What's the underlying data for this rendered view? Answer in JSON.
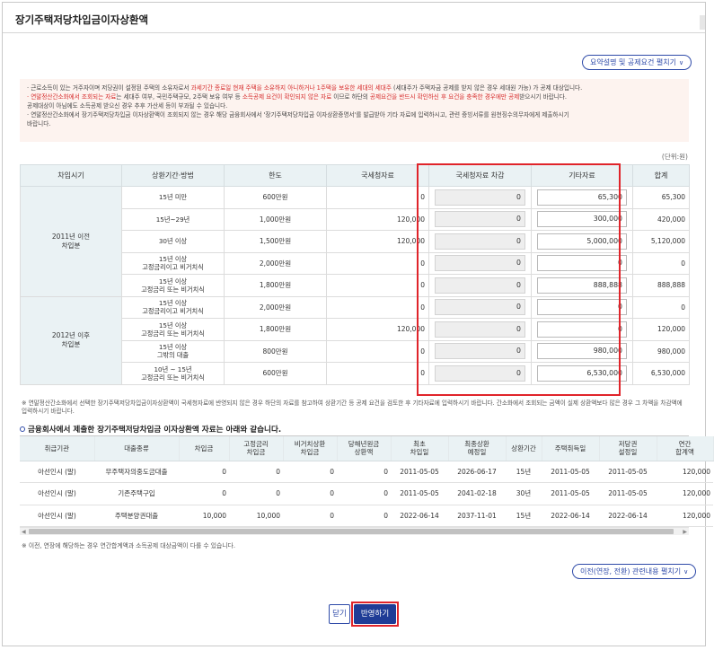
{
  "title": "장기주택저당차입금이자상환액",
  "summary_toggle": "요약설명 및 공제요건 펼치기",
  "notices": [
    {
      "parts": [
        {
          "t": "· 근로소득이 있는 거주자이며 저당권이 설정된 주택의 소유자로서 ",
          "red": false
        },
        {
          "t": "과세기간 종료일 현재 주택을 소유하지 아니하거나 1주택을 보유한 세대의 세대주",
          "red": true
        },
        {
          "t": " (세대주가 주택자금 공제를 받지 않은 경우 세대원 가능) 가 공제 대상입니다.",
          "red": false
        }
      ]
    },
    {
      "parts": [
        {
          "t": "· 연말정산간소화에서 조회되는 자료",
          "red": true
        },
        {
          "t": "는 세대주 여부, 국민주택규모, 2주택 보유 여부 등 ",
          "red": false
        },
        {
          "t": "소득공제 요건이 확인되지 않은 자료",
          "red": true
        },
        {
          "t": " 이므로 하단의 ",
          "red": false
        },
        {
          "t": "공제요건을 반드시 확인하신 후 요건을 충족한 경우에만 공제",
          "red": true
        },
        {
          "t": "받으시기 바랍니다.",
          "red": false
        }
      ]
    },
    {
      "parts": [
        {
          "t": "  공제대상이 아님에도 소득공제 받으신 경우 추후 가산세 등이 부과될 수 있습니다.",
          "red": false
        }
      ]
    },
    {
      "parts": [
        {
          "t": "· 연말정산간소화에서 장기주택저당차입금 이자상환액이 조회되지 않는 경우 해당 금융회사에서 '장기주택저당차입금 이자상환증명서'를 발급받아 기타 자료에 입력하시고, 관련 증빙서류를 원천징수의무자에게 제출하시기",
          "red": false
        }
      ]
    },
    {
      "parts": [
        {
          "t": "  바랍니다.",
          "red": false
        }
      ]
    }
  ],
  "unit_label": "(단위:원)",
  "main_table": {
    "headers": [
      "차입시기",
      "상환기간·방법",
      "한도",
      "국세청자료",
      "국세청자료 차감",
      "기타자료",
      "합계"
    ],
    "groups": [
      "2011년 이전\n차입분",
      "2012년 이후\n차입분"
    ],
    "rows": [
      {
        "method": "15년 미만",
        "limit": "600만원",
        "nts": "0",
        "deduct": "0",
        "other": "65,300",
        "total": "65,300"
      },
      {
        "method": "15년~29년",
        "limit": "1,000만원",
        "nts": "120,000",
        "deduct": "0",
        "other": "300,000",
        "total": "420,000"
      },
      {
        "method": "30년 이상",
        "limit": "1,500만원",
        "nts": "120,000",
        "deduct": "0",
        "other": "5,000,000",
        "total": "5,120,000"
      },
      {
        "method": "15년 이상\n고정금리이고 비거치식",
        "limit": "2,000만원",
        "nts": "0",
        "deduct": "0",
        "other": "0",
        "total": "0"
      },
      {
        "method": "15년 이상\n고정금리 또는 비거치식",
        "limit": "1,800만원",
        "nts": "0",
        "deduct": "0",
        "other": "888,888",
        "total": "888,888"
      },
      {
        "method": "15년 이상\n고정금리이고 비거치식",
        "limit": "2,000만원",
        "nts": "0",
        "deduct": "0",
        "other": "0",
        "total": "0"
      },
      {
        "method": "15년 이상\n고정금리 또는 비거치식",
        "limit": "1,800만원",
        "nts": "120,000",
        "deduct": "0",
        "other": "0",
        "total": "120,000"
      },
      {
        "method": "15년 이상\n그밖의 대출",
        "limit": "800만원",
        "nts": "0",
        "deduct": "0",
        "other": "980,000",
        "total": "980,000"
      },
      {
        "method": "10년 ~ 15년\n고정금리 또는 비거치식",
        "limit": "600만원",
        "nts": "0",
        "deduct": "0",
        "other": "6,530,000",
        "total": "6,530,000"
      }
    ]
  },
  "note_main": "※ 연말정산간소화에서 선택한 장기주택저당차입금이자상환액이 국세청자료에 반영되지 않은 경우 하단의 자료를 참고하여 상환기간 등 공제 요건을 검토한 후 기타자료에 입력하시기 바랍니다. 간소화에서 조회되는 금액이 실제 상환액보다 많은 경우 그 차액을 차감액에 입력하시기 바랍니다.",
  "sub_section_title": "금융회사에서 제출한 장기주택저당차입금 이자상환액 자료는 아래와 같습니다.",
  "sub_table": {
    "headers": [
      "취급기관",
      "대출종류",
      "차입금",
      "고정금리\n차입금",
      "비거치상환\n차입금",
      "당해년원금\n상환액",
      "최초\n차입일",
      "최종상환\n예정일",
      "상환기간",
      "주택취득일",
      "저당권\n설정일",
      "연간\n합계액"
    ],
    "rows": [
      [
        "아선인시 (말)",
        "무주택자의중도금대출",
        "0",
        "0",
        "0",
        "0",
        "2011-05-05",
        "2026-06-17",
        "15년",
        "2011-05-05",
        "2011-05-05",
        "120,000"
      ],
      [
        "아선인시 (말)",
        "기존주택구입",
        "0",
        "0",
        "0",
        "0",
        "2011-05-05",
        "2041-02-18",
        "30년",
        "2011-05-05",
        "2011-05-05",
        "120,000"
      ],
      [
        "아선인시 (말)",
        "주택분양권대출",
        "10,000",
        "10,000",
        "0",
        "0",
        "2022-06-14",
        "2037-11-01",
        "15년",
        "2022-06-14",
        "2022-06-14",
        "120,000"
      ]
    ]
  },
  "note_sub": "※ 이전, 연장에 해당하는 경우 연간합계액과 소득공제 대상금액이 다를 수 있습니다.",
  "transfer_toggle": "이전(연장, 전환) 관련내용 펼치기",
  "buttons": {
    "close": "닫기",
    "apply": "반영하기"
  },
  "colors": {
    "accent": "#2e4aa8",
    "highlight": "#e0242a",
    "header_bg": "#eaf2f4",
    "notice_bg": "#fdf3ef",
    "warning_text": "#d62b2b"
  }
}
